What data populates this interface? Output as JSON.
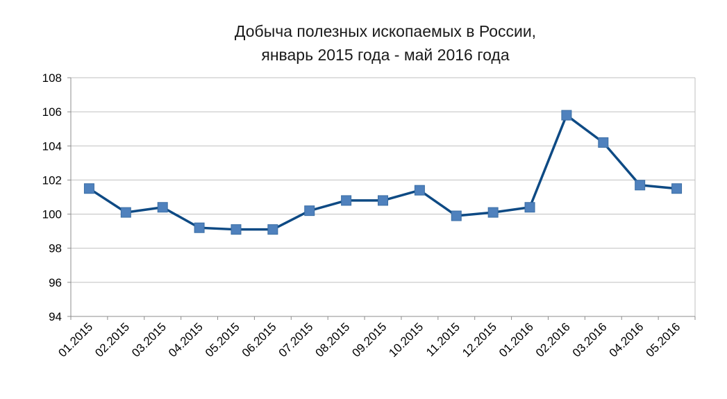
{
  "chart_data": {
    "type": "line",
    "title_line1": "Добыча полезных ископаемых в России,",
    "title_line2": "январь 2015 года - май 2016 года",
    "xlabel": "",
    "ylabel": "",
    "ylim": [
      94,
      108
    ],
    "yticks": [
      "94",
      "96",
      "98",
      "100",
      "102",
      "104",
      "106",
      "108"
    ],
    "grid": true,
    "legend": "none",
    "categories": [
      "01.2015",
      "02.2015",
      "03.2015",
      "04.2015",
      "05.2015",
      "06.2015",
      "07.2015",
      "08.2015",
      "09.2015",
      "10.2015",
      "11.2015",
      "12.2015",
      "01.2016",
      "02.2016",
      "03.2016",
      "04.2016",
      "05.2016"
    ],
    "series": [
      {
        "values": [
          101.5,
          100.1,
          100.4,
          99.2,
          99.1,
          99.1,
          100.2,
          100.8,
          100.8,
          101.4,
          99.9,
          100.1,
          100.4,
          105.8,
          104.2,
          101.7,
          101.5
        ],
        "line_color": "#0e4a84",
        "marker_color": "#4f81bd",
        "marker": "square"
      }
    ]
  }
}
